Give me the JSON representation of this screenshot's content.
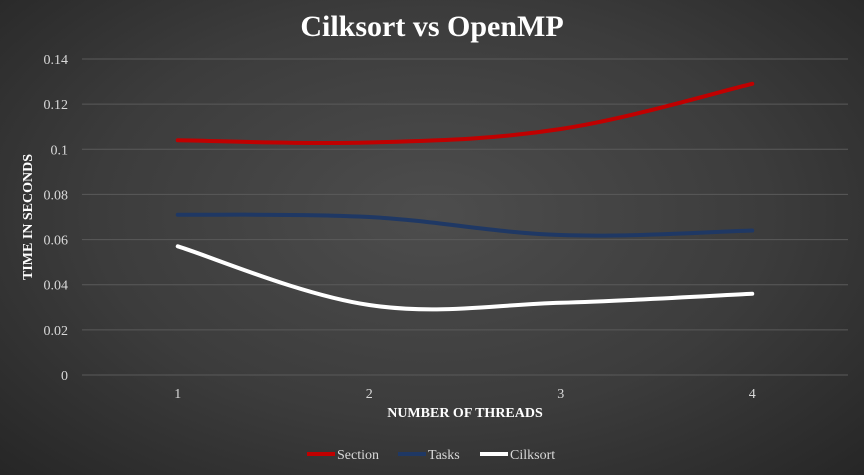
{
  "chart_data": {
    "type": "line",
    "title": "Cilksort  vs OpenMP",
    "xlabel": "NUMBER OF THREADS",
    "ylabel": "TIME IN SECONDS",
    "categories": [
      "1",
      "2",
      "3",
      "4"
    ],
    "ylim": [
      0,
      0.14
    ],
    "yticks": [
      0,
      0.02,
      0.04,
      0.06,
      0.08,
      0.1,
      0.12,
      0.14
    ],
    "grid": true,
    "legend_position": "bottom",
    "series": [
      {
        "name": "Section",
        "color": "#c00000",
        "values": [
          0.104,
          0.103,
          0.109,
          0.129
        ]
      },
      {
        "name": "Tasks",
        "color": "#1f3864",
        "values": [
          0.071,
          0.07,
          0.062,
          0.064
        ]
      },
      {
        "name": "Cilksort",
        "color": "#ffffff",
        "values": [
          0.057,
          0.031,
          0.032,
          0.036
        ]
      }
    ]
  }
}
